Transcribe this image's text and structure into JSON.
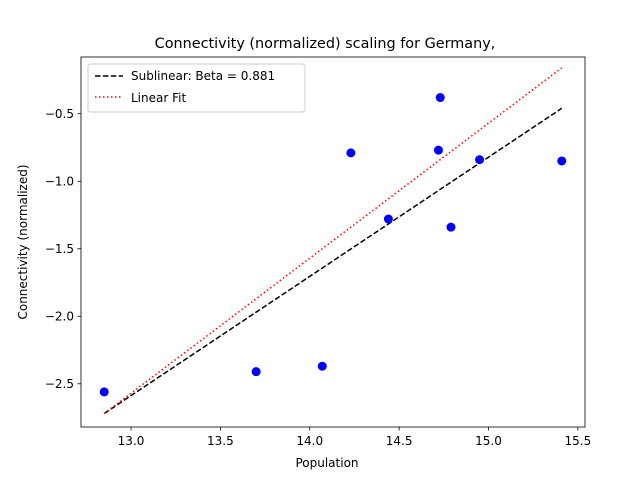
{
  "chart_data": {
    "type": "scatter",
    "title": "Connectivity (normalized) scaling for Germany,",
    "xlabel": "Population",
    "ylabel": "Connectivity (normalized)",
    "xlim": [
      12.72,
      15.54
    ],
    "ylim": [
      -2.82,
      -0.08
    ],
    "xticks": [
      {
        "value": 13.0,
        "label": "13.0"
      },
      {
        "value": 13.5,
        "label": "13.5"
      },
      {
        "value": 14.0,
        "label": "14.0"
      },
      {
        "value": 14.5,
        "label": "14.5"
      },
      {
        "value": 15.0,
        "label": "15.0"
      },
      {
        "value": 15.5,
        "label": "15.5"
      }
    ],
    "yticks": [
      {
        "value": -2.5,
        "label": "−2.5"
      },
      {
        "value": -2.0,
        "label": "−2.0"
      },
      {
        "value": -1.5,
        "label": "−1.5"
      },
      {
        "value": -1.0,
        "label": "−1.0"
      },
      {
        "value": -0.5,
        "label": "−0.5"
      }
    ],
    "grid": false,
    "legend_position": "top-left",
    "points": {
      "color": "#0000ff",
      "x": [
        12.85,
        13.7,
        14.07,
        14.23,
        14.44,
        14.72,
        14.73,
        14.79,
        14.95,
        15.41
      ],
      "y": [
        -2.56,
        -2.41,
        -2.37,
        -0.79,
        -1.28,
        -0.77,
        -0.38,
        -1.34,
        -0.84,
        -0.85
      ]
    },
    "series": [
      {
        "name": "Sublinear: Beta = 0.881",
        "style": "dashed",
        "color": "#000000",
        "x": [
          12.85,
          15.41
        ],
        "y": [
          -2.72,
          -0.46
        ]
      },
      {
        "name": "Linear Fit",
        "style": "dotted",
        "color": "#ff0000",
        "x": [
          12.85,
          15.41
        ],
        "y": [
          -2.72,
          -0.16
        ]
      }
    ]
  }
}
